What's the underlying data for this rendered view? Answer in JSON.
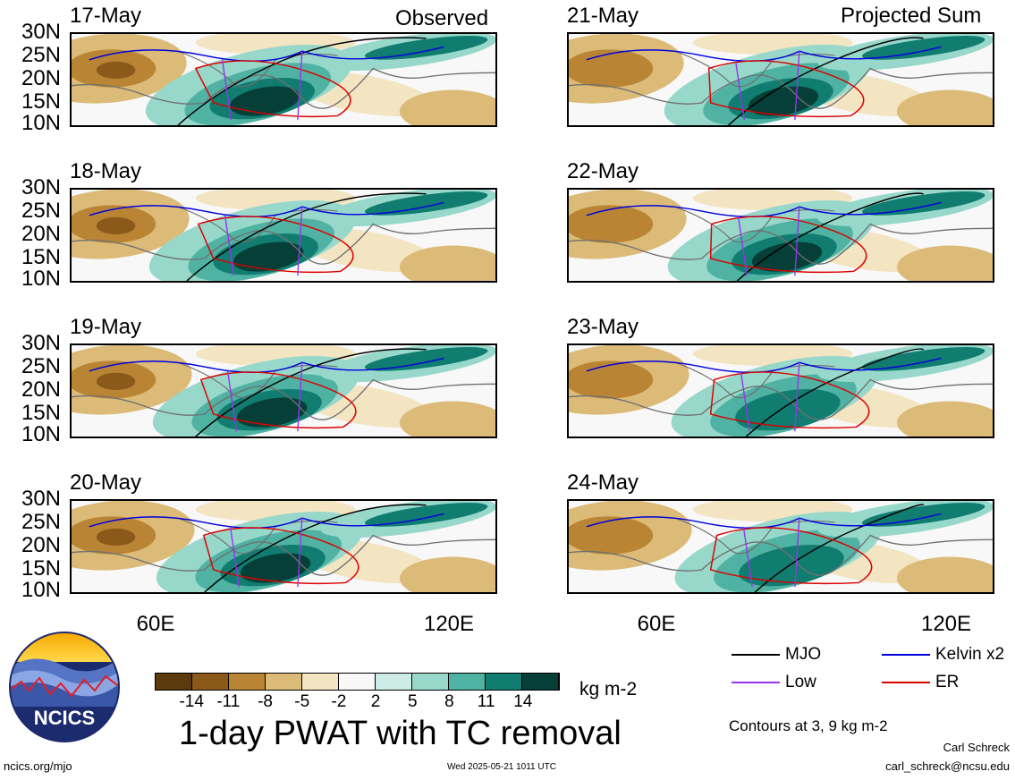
{
  "header": {
    "observed_label": "Observed",
    "projected_label": "Projected Sum"
  },
  "panels_left": [
    {
      "date": "17-May"
    },
    {
      "date": "18-May"
    },
    {
      "date": "19-May"
    },
    {
      "date": "20-May"
    }
  ],
  "panels_right": [
    {
      "date": "21-May"
    },
    {
      "date": "22-May"
    },
    {
      "date": "23-May"
    },
    {
      "date": "24-May"
    }
  ],
  "axes": {
    "lat_ticks": [
      "30N",
      "25N",
      "20N",
      "15N",
      "10N"
    ],
    "lon_ticks": [
      "60E",
      "120E"
    ]
  },
  "colorbar": {
    "labels": [
      "-14",
      "-11",
      "-8",
      "-5",
      "-2",
      "2",
      "5",
      "8",
      "11",
      "14"
    ],
    "colors": [
      "#5b3a0e",
      "#8b5a1a",
      "#b98534",
      "#dcbb78",
      "#f3e4c2",
      "#f8f8f8",
      "#cdece6",
      "#97d8cb",
      "#4fb2a2",
      "#117c70",
      "#053f38"
    ],
    "unit": "kg m-2"
  },
  "legend": {
    "items": [
      {
        "label": "MJO",
        "color": "#000000"
      },
      {
        "label": "Kelvin x2",
        "color": "#0000dd"
      },
      {
        "label": "Low",
        "color": "#9933ee"
      },
      {
        "label": "ER",
        "color": "#dd0000"
      }
    ],
    "contours_note": "Contours at 3, 9 kg m-2"
  },
  "footer": {
    "title": "1-day PWAT with TC removal",
    "site": "ncics.org/mjo",
    "timestamp": "Wed 2025-05-21 1011 UTC",
    "author": "Carl Schreck",
    "email": "carl_schreck@ncsu.edu",
    "logo_text": "NCICS"
  }
}
